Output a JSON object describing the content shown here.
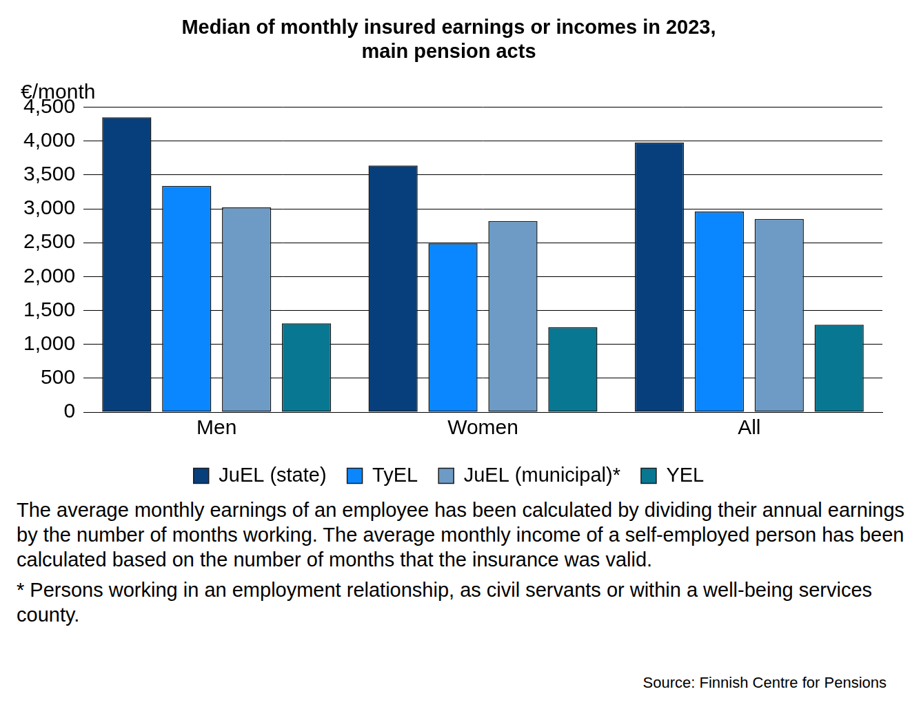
{
  "chart_data": {
    "type": "bar",
    "title": [
      "Median of monthly insured earnings or incomes in 2023,",
      "main pension acts"
    ],
    "y_label": "€/month",
    "categories": [
      "Men",
      "Women",
      "All"
    ],
    "series": [
      {
        "name": "JuEL (state)",
        "color": "#063f7c",
        "values": [
          4350,
          3640,
          3980
        ]
      },
      {
        "name": "TyEL",
        "color": "#0a87ff",
        "values": [
          3340,
          2490,
          2960
        ]
      },
      {
        "name": "JuEL (municipal)*",
        "color": "#6d9bc6",
        "values": [
          3020,
          2820,
          2850
        ]
      },
      {
        "name": "YEL",
        "color": "#087792",
        "values": [
          1310,
          1250,
          1290
        ]
      }
    ],
    "ylim": [
      0,
      4500
    ],
    "yticks": [
      0,
      500,
      {
        "value": 1000,
        "label": "1,000"
      },
      {
        "value": 1500,
        "label": "1,500"
      },
      {
        "value": 2000,
        "label": "2,000"
      },
      {
        "value": 2500,
        "label": "2,500"
      },
      {
        "value": 3000,
        "label": "3,000"
      },
      {
        "value": 3500,
        "label": "3,500"
      },
      {
        "value": 4000,
        "label": "4,000"
      },
      {
        "value": 4500,
        "label": "4,500"
      }
    ],
    "grid": true,
    "legend": "bottom",
    "data_labels": false,
    "notes": [
      "The average monthly earnings of an employee has been calculated by dividing their annual earnings by the number of months working. The average monthly income of a self-employed person has been calculated  based on the number of months that the insurance was valid.",
      "* Persons working in an employment relationship, as civil servants or within a well-being services county."
    ],
    "source": "Source: Finnish Centre for Pensions"
  }
}
